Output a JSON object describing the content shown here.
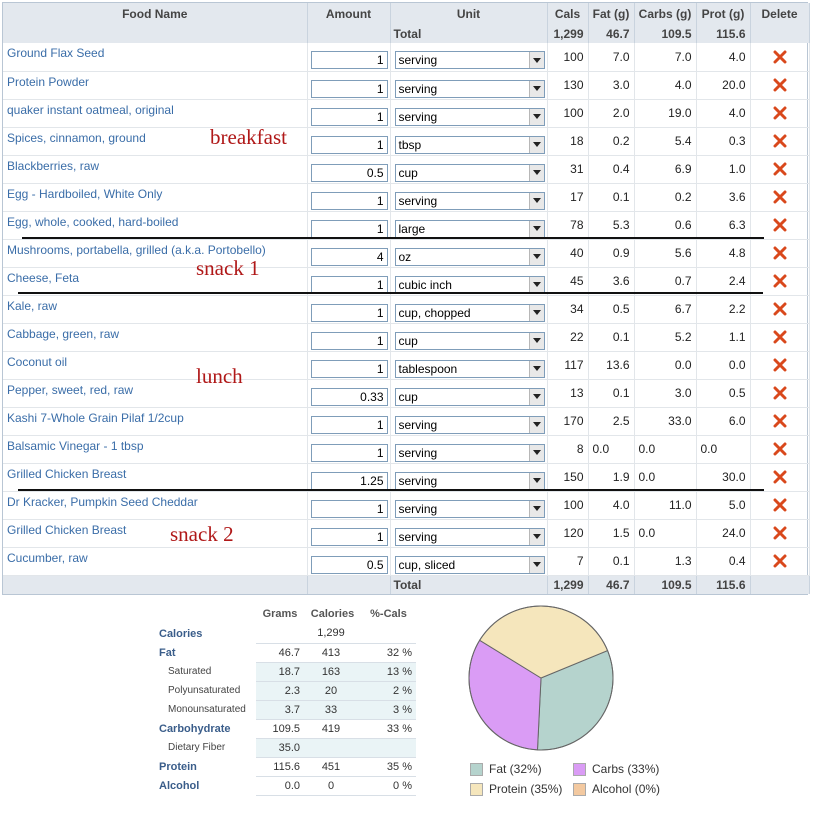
{
  "food_table": {
    "headers": [
      "Food Name",
      "Amount",
      "Unit",
      "Cals",
      "Fat (g)",
      "Carbs (g)",
      "Prot (g)",
      "Delete"
    ],
    "total_label": "Total",
    "totals": {
      "cals": "1,299",
      "fat": "46.7",
      "carbs": "109.5",
      "prot": "115.6"
    },
    "rows": [
      {
        "name": "Ground Flax Seed",
        "amount": "1",
        "unit": "serving",
        "cals": "100",
        "fat": "7.0",
        "carbs": "7.0",
        "prot": "4.0"
      },
      {
        "name": "Protein Powder",
        "amount": "1",
        "unit": "serving",
        "cals": "130",
        "fat": "3.0",
        "carbs": "4.0",
        "prot": "20.0"
      },
      {
        "name": "quaker instant oatmeal, original",
        "amount": "1",
        "unit": "serving",
        "cals": "100",
        "fat": "2.0",
        "carbs": "19.0",
        "prot": "4.0"
      },
      {
        "name": "Spices, cinnamon, ground",
        "amount": "1",
        "unit": "tbsp",
        "cals": "18",
        "fat": "0.2",
        "carbs": "5.4",
        "prot": "0.3"
      },
      {
        "name": "Blackberries, raw",
        "amount": "0.5",
        "unit": "cup",
        "cals": "31",
        "fat": "0.4",
        "carbs": "6.9",
        "prot": "1.0"
      },
      {
        "name": "Egg - Hardboiled, White Only",
        "amount": "1",
        "unit": "serving",
        "cals": "17",
        "fat": "0.1",
        "carbs": "0.2",
        "prot": "3.6"
      },
      {
        "name": "Egg, whole, cooked, hard-boiled",
        "amount": "1",
        "unit": "large",
        "cals": "78",
        "fat": "5.3",
        "carbs": "0.6",
        "prot": "6.3"
      },
      {
        "name": "Mushrooms, portabella, grilled (a.k.a. Portobello)",
        "amount": "4",
        "unit": "oz",
        "cals": "40",
        "fat": "0.9",
        "carbs": "5.6",
        "prot": "4.8"
      },
      {
        "name": "Cheese, Feta",
        "amount": "1",
        "unit": "cubic inch",
        "cals": "45",
        "fat": "3.6",
        "carbs": "0.7",
        "prot": "2.4"
      },
      {
        "name": "Kale, raw",
        "amount": "1",
        "unit": "cup, chopped",
        "cals": "34",
        "fat": "0.5",
        "carbs": "6.7",
        "prot": "2.2"
      },
      {
        "name": "Cabbage, green, raw",
        "amount": "1",
        "unit": "cup",
        "cals": "22",
        "fat": "0.1",
        "carbs": "5.2",
        "prot": "1.1"
      },
      {
        "name": "Coconut oil",
        "amount": "1",
        "unit": "tablespoon",
        "cals": "117",
        "fat": "13.6",
        "carbs": "0.0",
        "prot": "0.0"
      },
      {
        "name": "Pepper, sweet, red, raw",
        "amount": "0.33",
        "unit": "cup",
        "cals": "13",
        "fat": "0.1",
        "carbs": "3.0",
        "prot": "0.5"
      },
      {
        "name": "Kashi 7-Whole Grain Pilaf 1/2cup",
        "amount": "1",
        "unit": "serving",
        "cals": "170",
        "fat": "2.5",
        "carbs": "33.0",
        "prot": "6.0"
      },
      {
        "name": "Balsamic Vinegar - 1 tbsp",
        "amount": "1",
        "unit": "serving",
        "cals": "8",
        "fat": "0.0",
        "carbs": "0.0",
        "prot": "0.0"
      },
      {
        "name": "Grilled Chicken Breast",
        "amount": "1.25",
        "unit": "serving",
        "cals": "150",
        "fat": "1.9",
        "carbs": "0.0",
        "prot": "30.0"
      },
      {
        "name": "Dr Kracker, Pumpkin Seed Cheddar",
        "amount": "1",
        "unit": "serving",
        "cals": "100",
        "fat": "4.0",
        "carbs": "11.0",
        "prot": "5.0"
      },
      {
        "name": "Grilled Chicken Breast",
        "amount": "1",
        "unit": "serving",
        "cals": "120",
        "fat": "1.5",
        "carbs": "0.0",
        "prot": "24.0"
      },
      {
        "name": "Cucumber, raw",
        "amount": "0.5",
        "unit": "cup, sliced",
        "cals": "7",
        "fat": "0.1",
        "carbs": "1.3",
        "prot": "0.4"
      }
    ]
  },
  "annotations": {
    "breakfast": "breakfast",
    "snack1": "snack 1",
    "lunch": "lunch",
    "snack2": "snack 2"
  },
  "summary": {
    "headers": [
      "",
      "Grams",
      "Calories",
      "%-Cals"
    ],
    "rows": [
      {
        "label": "Calories",
        "grams": "",
        "cals": "1,299",
        "pct": "",
        "sub": false
      },
      {
        "label": "Fat",
        "grams": "46.7",
        "cals": "413",
        "pct": "32 %",
        "sub": false
      },
      {
        "label": "Saturated",
        "grams": "18.7",
        "cals": "163",
        "pct": "13 %",
        "sub": true
      },
      {
        "label": "Polyunsaturated",
        "grams": "2.3",
        "cals": "20",
        "pct": "2 %",
        "sub": true
      },
      {
        "label": "Monounsaturated",
        "grams": "3.7",
        "cals": "33",
        "pct": "3 %",
        "sub": true
      },
      {
        "label": "Carbohydrate",
        "grams": "109.5",
        "cals": "419",
        "pct": "33 %",
        "sub": false
      },
      {
        "label": "Dietary Fiber",
        "grams": "35.0",
        "cals": "",
        "pct": "",
        "sub": true
      },
      {
        "label": "Protein",
        "grams": "115.6",
        "cals": "451",
        "pct": "35 %",
        "sub": false
      },
      {
        "label": "Alcohol",
        "grams": "0.0",
        "cals": "0",
        "pct": "0 %",
        "sub": false
      }
    ]
  },
  "chart_data": {
    "type": "pie",
    "slices": [
      {
        "label": "Fat",
        "percent": 32,
        "color": "#b5d3cd"
      },
      {
        "label": "Carbs",
        "percent": 33,
        "color": "#da9cf5"
      },
      {
        "label": "Protein",
        "percent": 35,
        "color": "#f5e6bc"
      },
      {
        "label": "Alcohol",
        "percent": 0,
        "color": "#f3c9a0"
      }
    ],
    "legend": [
      "Fat (32%)",
      "Carbs (33%)",
      "Protein (35%)",
      "Alcohol (0%)"
    ]
  },
  "colors": {
    "link": "#3a6da8",
    "header_bg": "#e3e8ee",
    "annotation": "#b01818",
    "delete": "#d9481c"
  },
  "icons": {
    "delete": "delete-x-icon",
    "dropdown": "dropdown-arrow-icon"
  }
}
